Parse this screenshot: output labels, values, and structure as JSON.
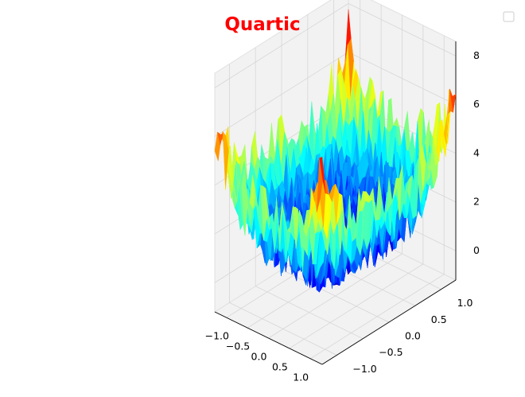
{
  "chart_data": {
    "type": "surface3d",
    "title": "Quartic",
    "title_color": "#ff0000",
    "colormap": "jet",
    "function": "Quartic: f(x, y) = x^4 + y^4 + uniform noise",
    "noise": [
      0,
      2.5
    ],
    "grid": true,
    "legend": {
      "placement": "top-right",
      "entries": []
    },
    "x": {
      "range": [
        -1.28,
        1.28
      ],
      "ticks": [
        -1.0,
        -0.5,
        0.0,
        0.5,
        1.0
      ],
      "tick_labels": [
        "−1.0",
        "−0.5",
        "0.0",
        "0.5",
        "1.0"
      ]
    },
    "y": {
      "range": [
        -1.28,
        1.28
      ],
      "ticks": [
        -1.0,
        -0.5,
        0.0,
        0.5,
        1.0
      ],
      "tick_labels": [
        "−1.0",
        "−0.5",
        "0.0",
        "0.5",
        "1.0"
      ]
    },
    "z": {
      "range": [
        -1.2,
        8.6
      ],
      "ticks": [
        0,
        2,
        4,
        6,
        8
      ],
      "tick_labels": [
        "0",
        "2",
        "4",
        "6",
        "8"
      ]
    },
    "colors": {
      "pane": "#f2f2f2",
      "grid": "#d6d6d6",
      "axis": "#000000"
    }
  }
}
